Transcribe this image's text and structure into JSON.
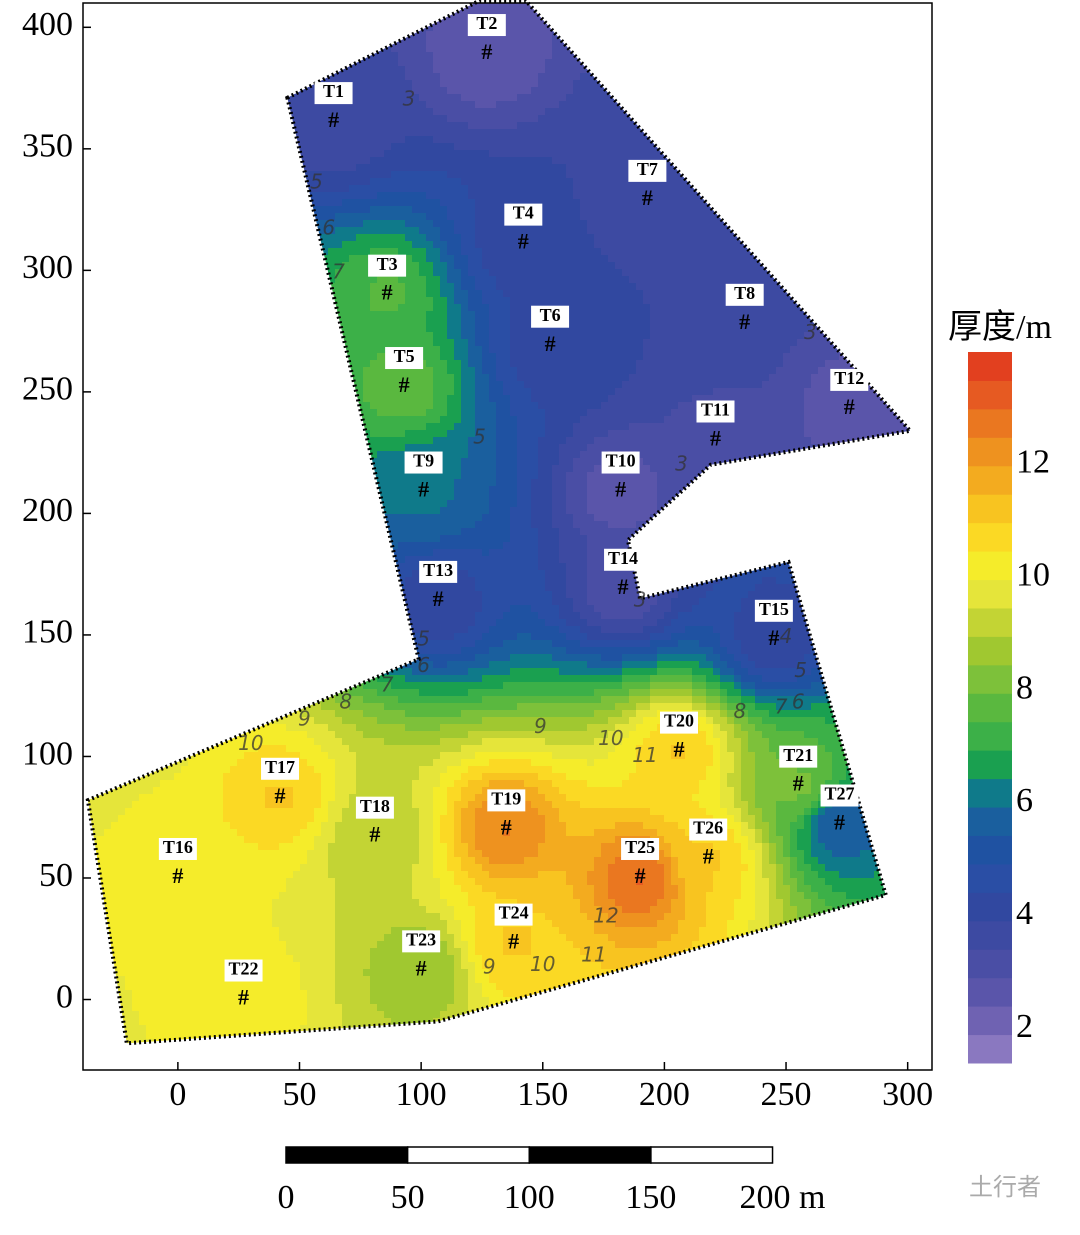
{
  "chart_data": {
    "type": "contour",
    "xlim": [
      -39,
      310
    ],
    "ylim": [
      -29,
      410
    ],
    "xticks": [
      0,
      50,
      100,
      150,
      200,
      250,
      300
    ],
    "yticks": [
      0,
      50,
      100,
      150,
      200,
      250,
      300,
      350,
      400
    ],
    "boundary": {
      "x": [
        45,
        124,
        143,
        301,
        219,
        185,
        190,
        251,
        291,
        107,
        -21,
        -37,
        99
      ],
      "y": [
        371,
        411,
        411,
        234,
        220,
        189,
        165,
        180,
        43,
        -9,
        -18,
        82,
        140
      ]
    },
    "boreholes": [
      {
        "name": "T1",
        "x": 64,
        "y": 361,
        "thickness": 3.5
      },
      {
        "name": "T2",
        "x": 127,
        "y": 389,
        "thickness": 2.5
      },
      {
        "name": "T3",
        "x": 86,
        "y": 290,
        "thickness": 7.5
      },
      {
        "name": "T4",
        "x": 142,
        "y": 311,
        "thickness": 4
      },
      {
        "name": "T5",
        "x": 93,
        "y": 252,
        "thickness": 7.8
      },
      {
        "name": "T6",
        "x": 153,
        "y": 269,
        "thickness": 4
      },
      {
        "name": "T7",
        "x": 193,
        "y": 329,
        "thickness": 3.5
      },
      {
        "name": "T8",
        "x": 233,
        "y": 278,
        "thickness": 3.5
      },
      {
        "name": "T9",
        "x": 101,
        "y": 209,
        "thickness": 6
      },
      {
        "name": "T10",
        "x": 182,
        "y": 209,
        "thickness": 2.5
      },
      {
        "name": "T11",
        "x": 221,
        "y": 230,
        "thickness": 3.2
      },
      {
        "name": "T12",
        "x": 276,
        "y": 243,
        "thickness": 2.5
      },
      {
        "name": "T13",
        "x": 107,
        "y": 164,
        "thickness": 4
      },
      {
        "name": "T14",
        "x": 183,
        "y": 169,
        "thickness": 3
      },
      {
        "name": "T15",
        "x": 245,
        "y": 148,
        "thickness": 4
      },
      {
        "name": "T16",
        "x": 0,
        "y": 50,
        "thickness": 10.3
      },
      {
        "name": "T17",
        "x": 42,
        "y": 83,
        "thickness": 11
      },
      {
        "name": "T18",
        "x": 81,
        "y": 67,
        "thickness": 9
      },
      {
        "name": "T19",
        "x": 135,
        "y": 70,
        "thickness": 12.5
      },
      {
        "name": "T20",
        "x": 206,
        "y": 102,
        "thickness": 11
      },
      {
        "name": "T21",
        "x": 255,
        "y": 88,
        "thickness": 8
      },
      {
        "name": "T22",
        "x": 27,
        "y": 0,
        "thickness": 10.3
      },
      {
        "name": "T23",
        "x": 100,
        "y": 12,
        "thickness": 8.5
      },
      {
        "name": "T24",
        "x": 138,
        "y": 23,
        "thickness": 11
      },
      {
        "name": "T25",
        "x": 190,
        "y": 50,
        "thickness": 13
      },
      {
        "name": "T26",
        "x": 218,
        "y": 58,
        "thickness": 11
      },
      {
        "name": "T27",
        "x": 272,
        "y": 72,
        "thickness": 5.5
      }
    ],
    "contour_labels": [
      {
        "value": 3,
        "x": 95,
        "y": 370
      },
      {
        "value": 5,
        "x": 57,
        "y": 336
      },
      {
        "value": 6,
        "x": 62,
        "y": 317
      },
      {
        "value": 7,
        "x": 66,
        "y": 299
      },
      {
        "value": 5,
        "x": 124,
        "y": 231
      },
      {
        "value": 3,
        "x": 207,
        "y": 220
      },
      {
        "value": 3,
        "x": 260,
        "y": 274
      },
      {
        "value": 3,
        "x": 190,
        "y": 164
      },
      {
        "value": 4,
        "x": 250,
        "y": 149
      },
      {
        "value": 5,
        "x": 101,
        "y": 148
      },
      {
        "value": 6,
        "x": 101,
        "y": 137
      },
      {
        "value": 5,
        "x": 256,
        "y": 135
      },
      {
        "value": 6,
        "x": 255,
        "y": 122
      },
      {
        "value": 7,
        "x": 248,
        "y": 120
      },
      {
        "value": 8,
        "x": 231,
        "y": 118
      },
      {
        "value": 7,
        "x": 86,
        "y": 129
      },
      {
        "value": 8,
        "x": 69,
        "y": 122
      },
      {
        "value": 9,
        "x": 52,
        "y": 115
      },
      {
        "value": 10,
        "x": 30,
        "y": 105
      },
      {
        "value": 9,
        "x": 149,
        "y": 112
      },
      {
        "value": 10,
        "x": 178,
        "y": 107
      },
      {
        "value": 11,
        "x": 192,
        "y": 100
      },
      {
        "value": 12,
        "x": 176,
        "y": 34
      },
      {
        "value": 11,
        "x": 171,
        "y": 18
      },
      {
        "value": 10,
        "x": 150,
        "y": 14
      },
      {
        "value": 9,
        "x": 128,
        "y": 13
      }
    ],
    "colorbar": {
      "title": "厚度/m",
      "lim": [
        1.4,
        14
      ],
      "ticks": [
        2,
        4,
        6,
        8,
        10,
        12
      ],
      "colors": [
        "#8a78c0",
        "#6f62b2",
        "#5a55aa",
        "#4a4ea5",
        "#3d4aa2",
        "#3148a0",
        "#2a4ea5",
        "#1f52a2",
        "#1a5f9e",
        "#0f7a8a",
        "#1aa050",
        "#3cb048",
        "#5ab83f",
        "#7dc13a",
        "#a0c830",
        "#c3d434",
        "#e5e53a",
        "#f5ec2a",
        "#fbd924",
        "#f8c420",
        "#f3ab1f",
        "#ee921f",
        "#ea7720",
        "#e65a22",
        "#e2401f"
      ]
    },
    "scale_bar": {
      "ticks": [
        0,
        50,
        100,
        150,
        {
          "value": 200,
          "label": "200 m"
        }
      ]
    },
    "watermark": "土行者"
  }
}
